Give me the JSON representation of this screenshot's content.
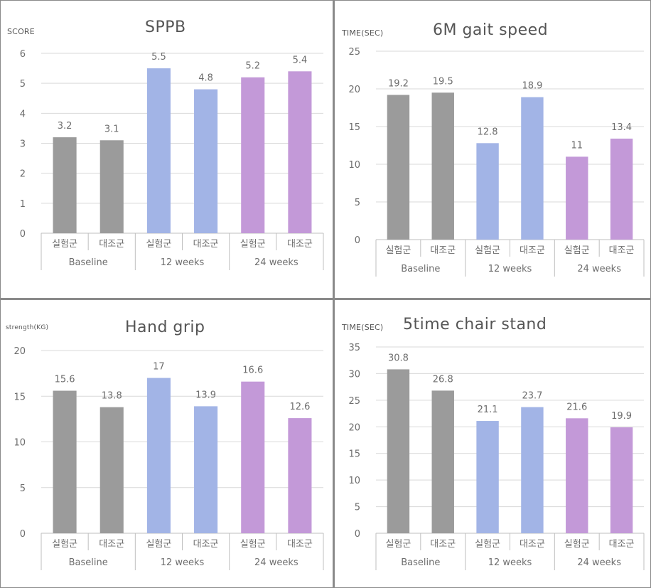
{
  "colors": {
    "baseline": "#9b9b9b",
    "week12": "#a2b4e6",
    "week24": "#c399d8",
    "grid": "#d9d9d9",
    "axis": "#bfbfbf",
    "text": "#6d6d6d"
  },
  "group_labels": [
    "실험군",
    "대조군",
    "실험군",
    "대조군",
    "실험군",
    "대조군"
  ],
  "period_labels": [
    "Baseline",
    "12 weeks",
    "24 weeks"
  ],
  "chart_data": [
    {
      "type": "bar",
      "title": "SPPB",
      "ylabel": "SCORE",
      "ylim": [
        0,
        6
      ],
      "yticks": [
        "0",
        "1",
        "2",
        "3",
        "4",
        "5",
        "6"
      ],
      "categories": [
        "실험군",
        "대조군",
        "실험군",
        "대조군",
        "실험군",
        "대조군"
      ],
      "groups": [
        "Baseline",
        "12 weeks",
        "24 weeks"
      ],
      "values": [
        3.2,
        3.1,
        5.5,
        4.8,
        5.2,
        5.4
      ],
      "value_labels": [
        "3.2",
        "3.1",
        "5.5",
        "4.8",
        "5.2",
        "5.4"
      ],
      "grid": true
    },
    {
      "type": "bar",
      "title": "6M gait speed",
      "ylabel": "TIME(SEC)",
      "ylim": [
        0,
        25
      ],
      "yticks": [
        "0",
        "5",
        "10",
        "15",
        "20",
        "25"
      ],
      "categories": [
        "실험군",
        "대조군",
        "실험군",
        "대조군",
        "실험군",
        "대조군"
      ],
      "groups": [
        "Baseline",
        "12 weeks",
        "24 weeks"
      ],
      "values": [
        19.2,
        19.5,
        12.8,
        18.9,
        11,
        13.4
      ],
      "value_labels": [
        "19.2",
        "19.5",
        "12.8",
        "18.9",
        "11",
        "13.4"
      ],
      "grid": true
    },
    {
      "type": "bar",
      "title": "Hand grip",
      "ylabel": "strength(KG)",
      "ylim": [
        0,
        20
      ],
      "yticks": [
        "0",
        "5",
        "10",
        "15",
        "20"
      ],
      "categories": [
        "실험군",
        "대조군",
        "실험군",
        "대조군",
        "실험군",
        "대조군"
      ],
      "groups": [
        "Baseline",
        "12 weeks",
        "24 weeks"
      ],
      "values": [
        15.6,
        13.8,
        17,
        13.9,
        16.6,
        12.6
      ],
      "value_labels": [
        "15.6",
        "13.8",
        "17",
        "13.9",
        "16.6",
        "12.6"
      ],
      "grid": true
    },
    {
      "type": "bar",
      "title": "5time chair stand",
      "ylabel": "TIME(SEC)",
      "ylim": [
        0,
        35
      ],
      "yticks": [
        "0",
        "5",
        "10",
        "15",
        "20",
        "25",
        "30",
        "35"
      ],
      "categories": [
        "실험군",
        "대조군",
        "실험군",
        "대조군",
        "실험군",
        "대조군"
      ],
      "groups": [
        "Baseline",
        "12 weeks",
        "24 weeks"
      ],
      "values": [
        30.8,
        26.8,
        21.1,
        23.7,
        21.6,
        19.9
      ],
      "value_labels": [
        "30.8",
        "26.8",
        "21.1",
        "23.7",
        "21.6",
        "19.9"
      ],
      "grid": true
    }
  ]
}
